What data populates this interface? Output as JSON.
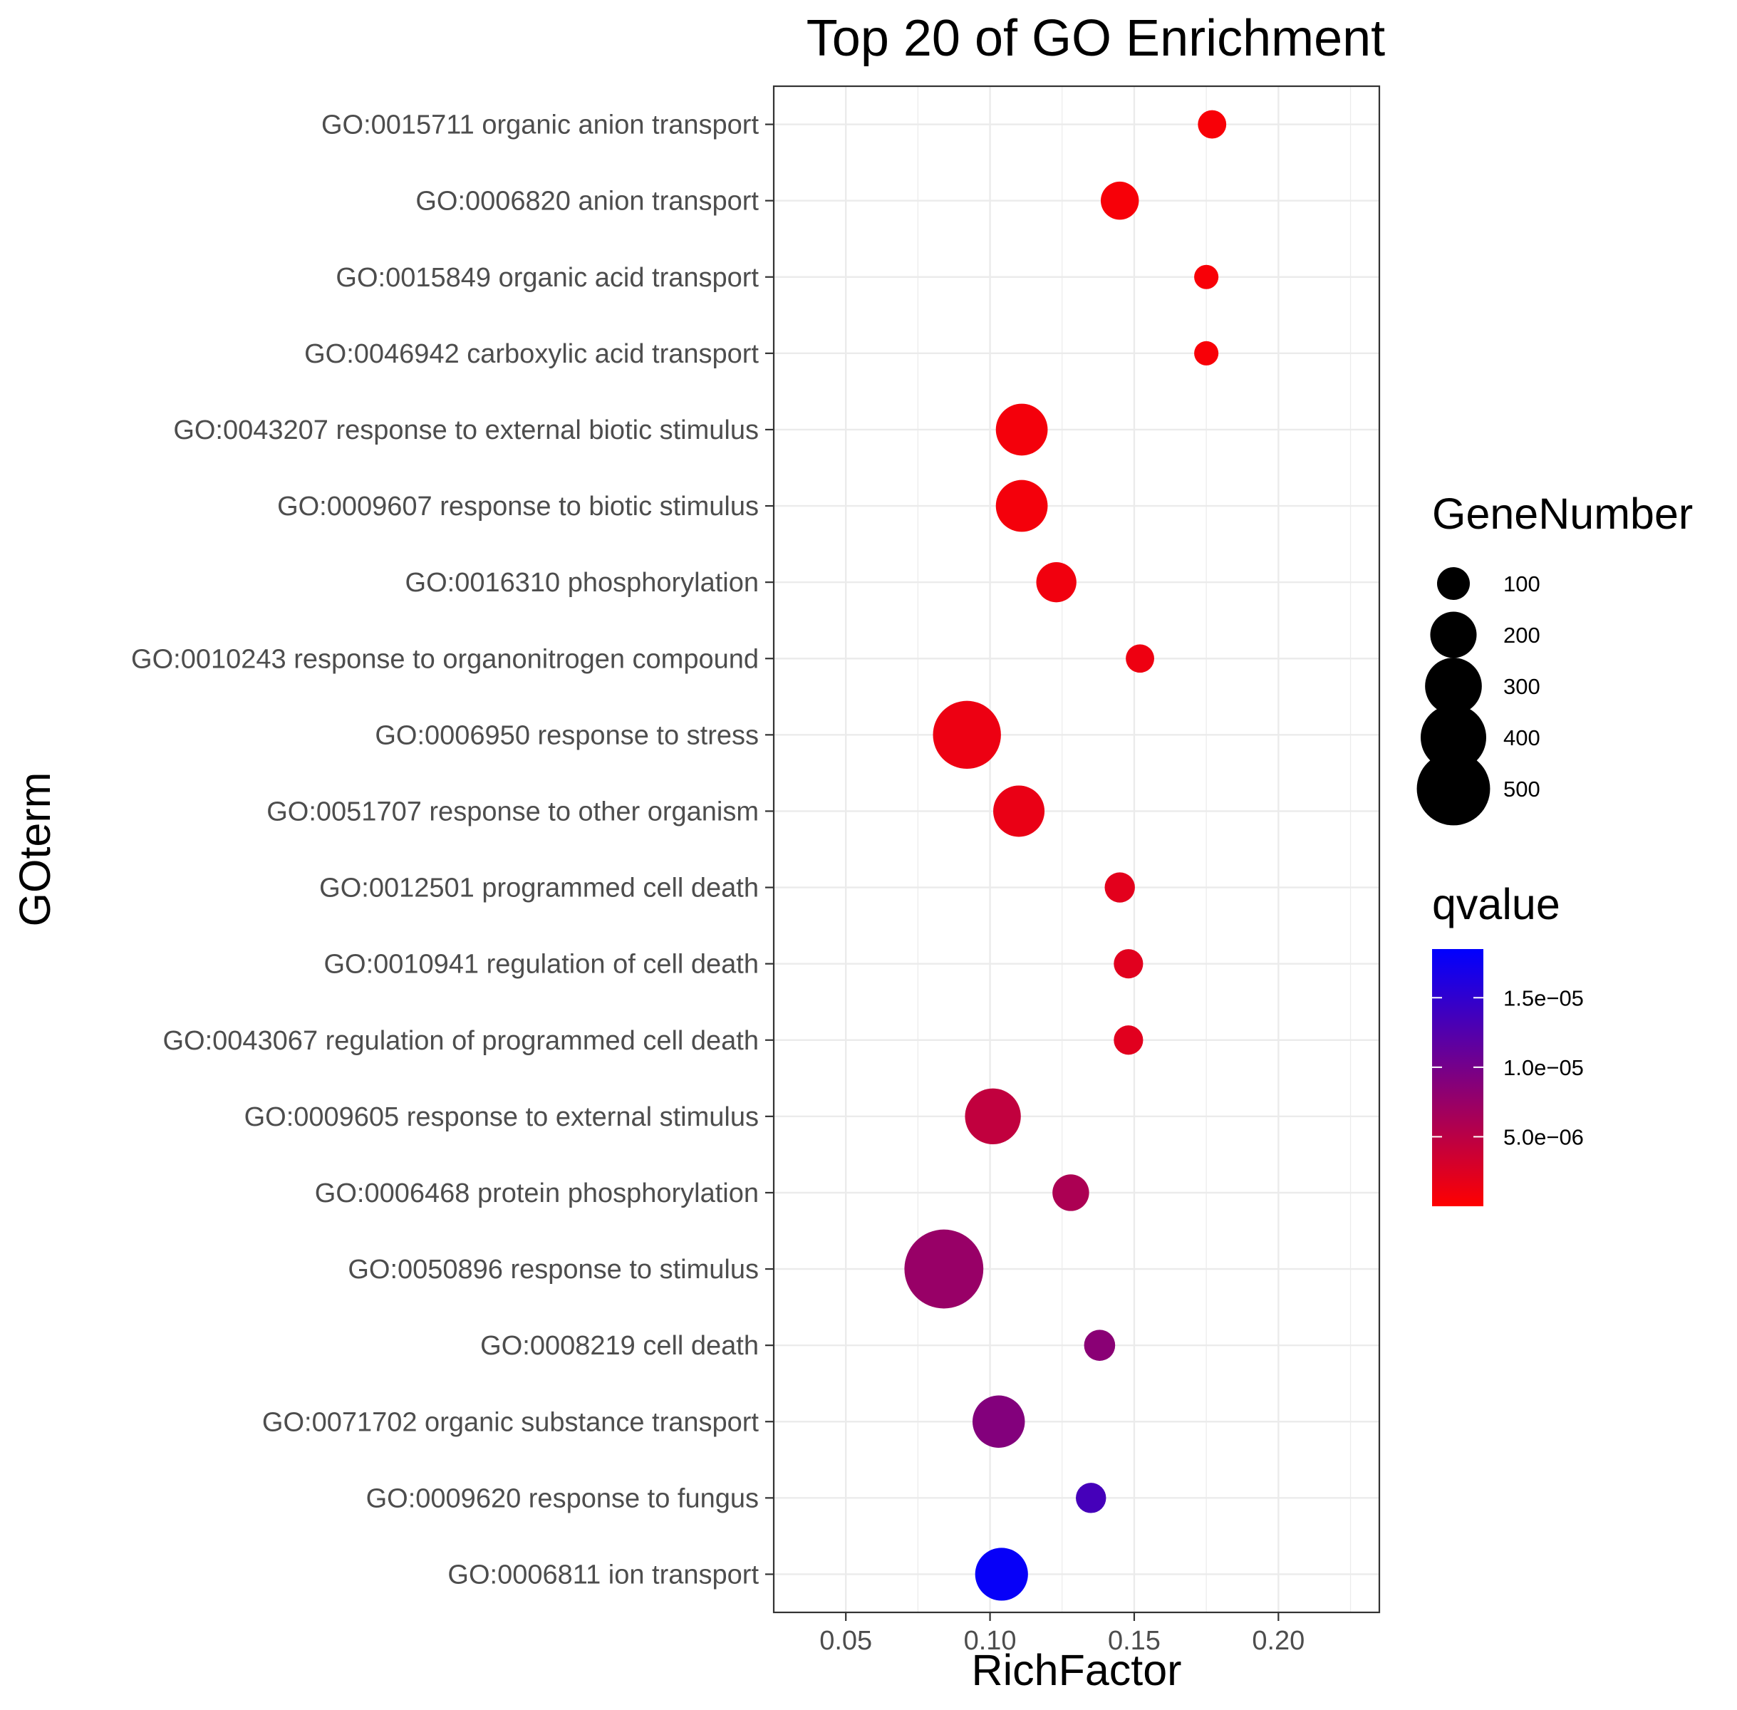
{
  "chart_data": {
    "type": "scatter",
    "title": "Top 20 of GO Enrichment",
    "xlabel": "RichFactor",
    "ylabel": "GOterm",
    "xlim": [
      0.025,
      0.235
    ],
    "xticks": [
      0.05,
      0.1,
      0.15,
      0.2
    ],
    "xtick_labels": [
      "0.05",
      "0.10",
      "0.15",
      "0.20"
    ],
    "grid": true,
    "points": [
      {
        "term": "GO:0015711 organic anion transport",
        "x": 0.177,
        "size": 75,
        "qvalue": 5e-07
      },
      {
        "term": "GO:0006820 anion transport",
        "x": 0.145,
        "size": 135,
        "qvalue": 6e-07
      },
      {
        "term": "GO:0015849 organic acid transport",
        "x": 0.175,
        "size": 55,
        "qvalue": 5e-07
      },
      {
        "term": "GO:0046942 carboxylic acid transport",
        "x": 0.175,
        "size": 55,
        "qvalue": 5e-07
      },
      {
        "term": "GO:0043207 response to external biotic stimulus",
        "x": 0.111,
        "size": 250,
        "qvalue": 8e-07
      },
      {
        "term": "GO:0009607 response to biotic stimulus",
        "x": 0.111,
        "size": 250,
        "qvalue": 8e-07
      },
      {
        "term": "GO:0016310 phosphorylation",
        "x": 0.123,
        "size": 150,
        "qvalue": 1e-06
      },
      {
        "term": "GO:0010243 response to organonitrogen compound",
        "x": 0.152,
        "size": 75,
        "qvalue": 1.2e-06
      },
      {
        "term": "GO:0006950 response to stress",
        "x": 0.092,
        "size": 430,
        "qvalue": 1.3e-06
      },
      {
        "term": "GO:0051707 response to other organism",
        "x": 0.11,
        "size": 245,
        "qvalue": 1.5e-06
      },
      {
        "term": "GO:0012501 programmed cell death",
        "x": 0.145,
        "size": 85,
        "qvalue": 2e-06
      },
      {
        "term": "GO:0010941 regulation of cell death",
        "x": 0.148,
        "size": 80,
        "qvalue": 2.2e-06
      },
      {
        "term": "GO:0043067 regulation of programmed cell death",
        "x": 0.148,
        "size": 80,
        "qvalue": 2.2e-06
      },
      {
        "term": "GO:0009605 response to external stimulus",
        "x": 0.101,
        "size": 290,
        "qvalue": 4.5e-06
      },
      {
        "term": "GO:0006468 protein phosphorylation",
        "x": 0.128,
        "size": 125,
        "qvalue": 6e-06
      },
      {
        "term": "GO:0050896 response to stimulus",
        "x": 0.084,
        "size": 580,
        "qvalue": 7.5e-06
      },
      {
        "term": "GO:0008219 cell death",
        "x": 0.138,
        "size": 90,
        "qvalue": 8.5e-06
      },
      {
        "term": "GO:0071702 organic substance transport",
        "x": 0.103,
        "size": 255,
        "qvalue": 9e-06
      },
      {
        "term": "GO:0009620 response to fungus",
        "x": 0.135,
        "size": 85,
        "qvalue": 1.35e-05
      },
      {
        "term": "GO:0006811 ion transport",
        "x": 0.104,
        "size": 260,
        "qvalue": 1.8e-05
      }
    ],
    "size_legend": {
      "title": "GeneNumber",
      "values": [
        100,
        200,
        300,
        400,
        500
      ],
      "labels": [
        "100",
        "200",
        "300",
        "400",
        "500"
      ]
    },
    "color_legend": {
      "title": "qvalue",
      "min": 0,
      "max": 1.85e-05,
      "low_color": "#ff0000",
      "high_color": "#0000ff",
      "ticks": [
        5e-06,
        1e-05,
        1.5e-05
      ],
      "tick_labels": [
        "5.0e−06",
        "1.0e−05",
        "1.5e−05"
      ]
    }
  }
}
